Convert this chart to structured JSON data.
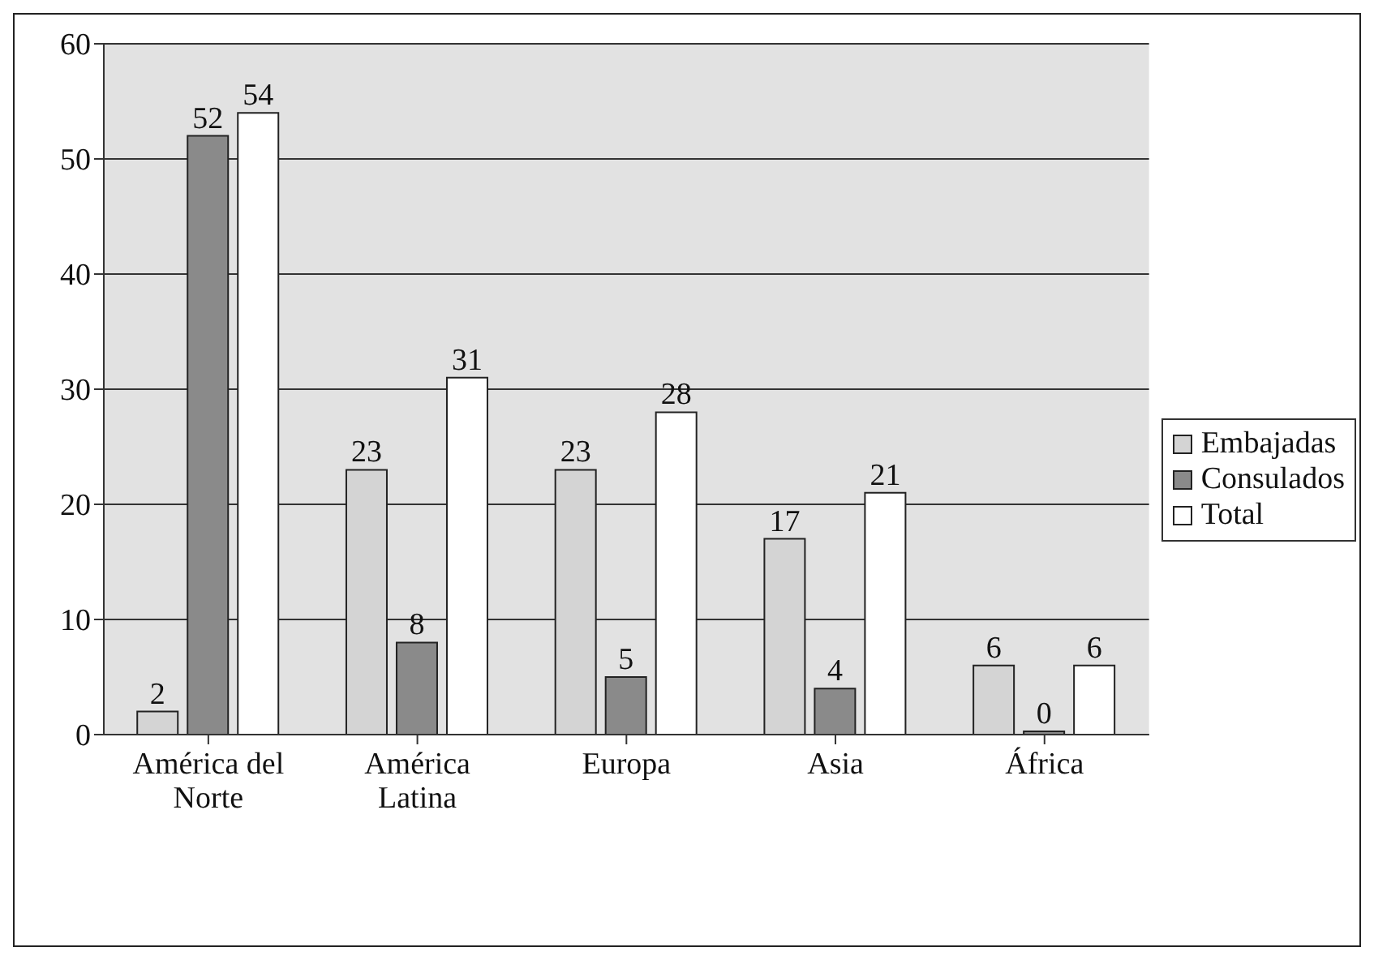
{
  "chart_data": {
    "type": "bar",
    "categories": [
      "América del Norte",
      "América Latina",
      "Europa",
      "Asia",
      "África"
    ],
    "series": [
      {
        "name": "Embajadas",
        "color": "#d4d4d4",
        "values": [
          2,
          23,
          23,
          17,
          6
        ]
      },
      {
        "name": "Consulados",
        "color": "#8a8a8a",
        "values": [
          52,
          8,
          5,
          4,
          0
        ]
      },
      {
        "name": "Total",
        "color": "#ffffff",
        "values": [
          54,
          31,
          28,
          21,
          6
        ]
      }
    ],
    "ylim": [
      0,
      60
    ],
    "yticks": [
      0,
      10,
      20,
      30,
      40,
      50,
      60
    ],
    "grid": "y",
    "legend": "right",
    "data_labels": true
  }
}
